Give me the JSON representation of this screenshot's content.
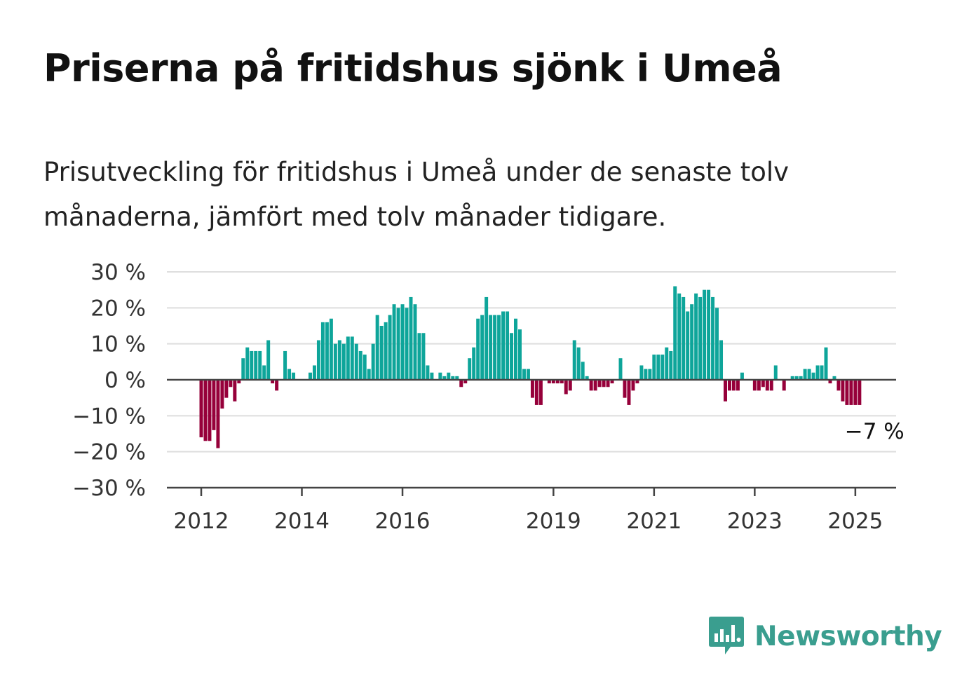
{
  "title": "Priserna på fritidshus sjönk i Umeå",
  "subtitle": "Prisutveckling för fritidshus i Umeå under de senaste tolv månaderna, jämfört med tolv månader tidigare.",
  "brand": {
    "name": "Newsworthy",
    "icon": "newsworthy-logo-icon"
  },
  "chart_data": {
    "type": "bar",
    "title": "Priserna på fritidshus sjönk i Umeå",
    "xlabel": "",
    "ylabel": "",
    "ylim": [
      -30,
      30
    ],
    "yticks": [
      30,
      20,
      10,
      0,
      -10,
      -20,
      -30
    ],
    "ytick_labels": [
      "30 %",
      "20 %",
      "10 %",
      "0 %",
      "−10 %",
      "−20 %",
      "−30 %"
    ],
    "xticks": [
      "2012",
      "2014",
      "2016",
      "2019",
      "2021",
      "2023",
      "2025"
    ],
    "x_start": "2012-01",
    "x_end": "2025-06",
    "grid": true,
    "legend": "none",
    "colors": {
      "positive": "#0ea59a",
      "negative": "#96003a",
      "grid": "#dedede",
      "axis": "#444444"
    },
    "annotation": {
      "text": "−7 %",
      "x": "2025-06",
      "y": -7
    },
    "values": [
      -16,
      -17,
      -17,
      -14,
      -19,
      -8,
      -5,
      -2,
      -6,
      -1,
      6,
      9,
      8,
      8,
      8,
      4,
      11,
      -1,
      -3,
      0,
      8,
      3,
      2,
      0,
      0,
      0,
      2,
      4,
      11,
      16,
      16,
      17,
      10,
      11,
      10,
      12,
      12,
      10,
      8,
      7,
      3,
      10,
      18,
      15,
      16,
      18,
      21,
      20,
      21,
      20,
      23,
      21,
      13,
      13,
      4,
      2,
      0,
      2,
      1,
      2,
      1,
      1,
      -2,
      -1,
      6,
      9,
      17,
      18,
      23,
      18,
      18,
      18,
      19,
      19,
      13,
      17,
      14,
      3,
      3,
      -5,
      -7,
      -7,
      0,
      -1,
      -1,
      -1,
      -1,
      -4,
      -3,
      11,
      9,
      5,
      1,
      -3,
      -3,
      -2,
      -2,
      -2,
      -1,
      0,
      6,
      -5,
      -7,
      -3,
      -1,
      4,
      3,
      3,
      7,
      7,
      7,
      9,
      8,
      26,
      24,
      23,
      19,
      21,
      24,
      23,
      25,
      25,
      23,
      20,
      11,
      -6,
      -3,
      -3,
      -3,
      2,
      0,
      0,
      -3,
      -3,
      -2,
      -3,
      -3,
      4,
      0,
      -3,
      0,
      1,
      1,
      1,
      3,
      3,
      2,
      4,
      4,
      9,
      -1,
      1,
      -3,
      -6,
      -7,
      -7,
      -7,
      -7
    ]
  }
}
